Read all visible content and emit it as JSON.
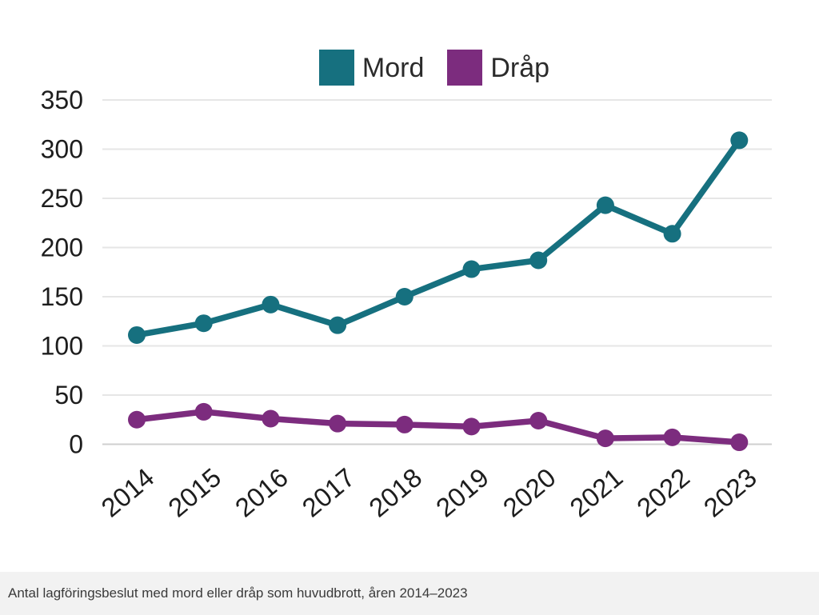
{
  "legend": {
    "items": [
      {
        "label": "Mord",
        "color": "#16707f"
      },
      {
        "label": "Dråp",
        "color": "#7c2c7e"
      }
    ]
  },
  "caption": "Antal lagföringsbeslut med mord eller dråp som huvudbrott, åren 2014–2023",
  "colors": {
    "grid": "#e6e6e6",
    "zero_grid": "#cfcfcf",
    "axis_text": "#1d1d1d",
    "caption_bg": "#f2f2f2"
  },
  "chart_data": {
    "type": "line",
    "title": "",
    "xlabel": "",
    "ylabel": "",
    "categories": [
      "2014",
      "2015",
      "2016",
      "2017",
      "2018",
      "2019",
      "2020",
      "2021",
      "2022",
      "2023"
    ],
    "series": [
      {
        "name": "Mord",
        "color": "#16707f",
        "values": [
          111,
          123,
          142,
          121,
          150,
          178,
          187,
          243,
          214,
          309
        ]
      },
      {
        "name": "Dråp",
        "color": "#7c2c7e",
        "values": [
          25,
          33,
          26,
          21,
          20,
          18,
          24,
          6,
          7,
          2
        ]
      }
    ],
    "yticks": [
      0,
      50,
      100,
      150,
      200,
      250,
      300,
      350
    ],
    "ylim": [
      0,
      350
    ],
    "grid": "horizontal-only",
    "legend_position": "top-center",
    "x_tick_rotation_deg": -40,
    "marker": "circle"
  }
}
